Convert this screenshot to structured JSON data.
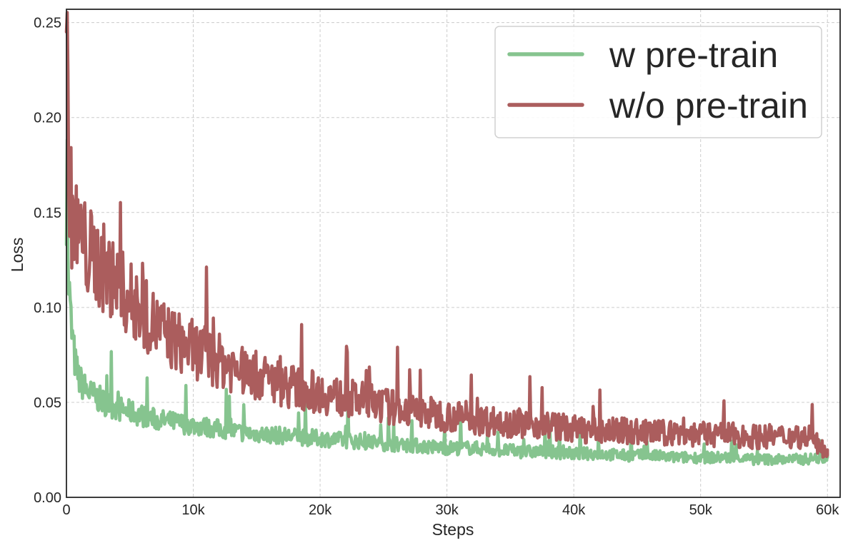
{
  "chart_data": {
    "type": "line",
    "title": "",
    "xlabel": "Steps",
    "ylabel": "Loss",
    "xlim": [
      0,
      61000
    ],
    "ylim": [
      0,
      0.257
    ],
    "x_ticks": [
      0,
      10000,
      20000,
      30000,
      40000,
      50000,
      60000
    ],
    "x_tick_labels": [
      "0",
      "10k",
      "20k",
      "30k",
      "40k",
      "50k",
      "60k"
    ],
    "y_ticks": [
      0,
      0.05,
      0.1,
      0.15,
      0.2,
      0.25
    ],
    "y_tick_labels": [
      "0.00",
      "0.05",
      "0.10",
      "0.15",
      "0.20",
      "0.25"
    ],
    "grid": true,
    "legend_position": "top-right",
    "series": [
      {
        "name": "w pre-train",
        "color": "#86c48f",
        "x": [
          0,
          200,
          400,
          700,
          1000,
          1400,
          1800,
          2500,
          3000,
          4000,
          5000,
          6000,
          7000,
          8000,
          9000,
          10000,
          12000,
          14000,
          16000,
          18000,
          20000,
          22000,
          24000,
          26000,
          28000,
          30000,
          32000,
          34000,
          36000,
          38000,
          40000,
          42000,
          44000,
          46000,
          48000,
          50000,
          52000,
          54000,
          56000,
          58000,
          60000
        ],
        "y": [
          0.133,
          0.11,
          0.088,
          0.07,
          0.062,
          0.058,
          0.055,
          0.052,
          0.05,
          0.047,
          0.045,
          0.043,
          0.041,
          0.04,
          0.039,
          0.038,
          0.036,
          0.034,
          0.033,
          0.032,
          0.031,
          0.03,
          0.029,
          0.028,
          0.027,
          0.026,
          0.026,
          0.025,
          0.024,
          0.024,
          0.023,
          0.023,
          0.022,
          0.022,
          0.021,
          0.021,
          0.021,
          0.02,
          0.02,
          0.02,
          0.021
        ]
      },
      {
        "name": "w/o pre-train",
        "color": "#ab5d5d",
        "x": [
          0,
          200,
          400,
          700,
          1000,
          1400,
          1800,
          2500,
          3000,
          4000,
          5000,
          6000,
          7000,
          8000,
          9000,
          10000,
          12000,
          14000,
          16000,
          18000,
          20000,
          22000,
          24000,
          26000,
          28000,
          30000,
          32000,
          34000,
          36000,
          38000,
          40000,
          42000,
          44000,
          46000,
          48000,
          50000,
          52000,
          54000,
          56000,
          58000,
          60000
        ],
        "y": [
          0.245,
          0.175,
          0.15,
          0.142,
          0.138,
          0.132,
          0.128,
          0.124,
          0.12,
          0.112,
          0.104,
          0.097,
          0.091,
          0.085,
          0.081,
          0.078,
          0.072,
          0.066,
          0.062,
          0.058,
          0.055,
          0.052,
          0.05,
          0.047,
          0.045,
          0.043,
          0.041,
          0.04,
          0.039,
          0.038,
          0.036,
          0.035,
          0.035,
          0.034,
          0.034,
          0.033,
          0.033,
          0.032,
          0.032,
          0.032,
          0.025
        ]
      }
    ]
  }
}
